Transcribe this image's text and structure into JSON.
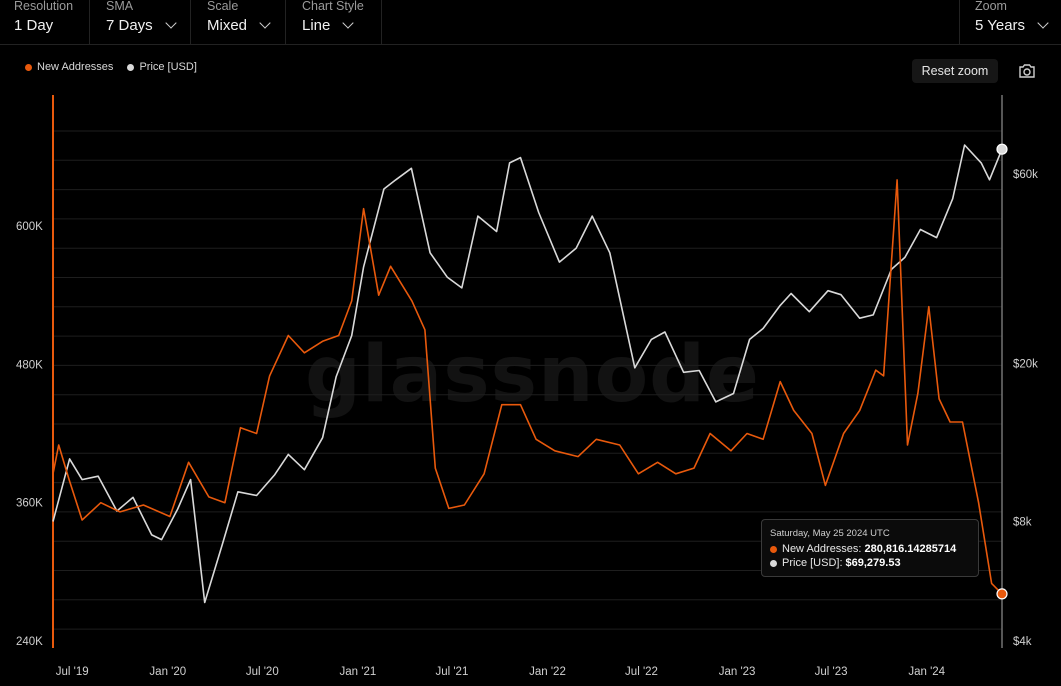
{
  "toolbar": {
    "resolution": {
      "label": "Resolution",
      "value": "1 Day"
    },
    "sma": {
      "label": "SMA",
      "value": "7 Days"
    },
    "scale": {
      "label": "Scale",
      "value": "Mixed"
    },
    "chart_style": {
      "label": "Chart Style",
      "value": "Line"
    },
    "zoom": {
      "label": "Zoom",
      "value": "5 Years"
    }
  },
  "buttons": {
    "reset_zoom": "Reset zoom"
  },
  "watermark": "glassnode",
  "tooltip": {
    "date": "Saturday, May 25 2024 UTC",
    "new_addresses_label": "New Addresses:",
    "new_addresses_value": "280,816.14285714",
    "price_label": "Price [USD]:",
    "price_value": "$69,279.53"
  },
  "colors": {
    "new_addresses": "#e8590c",
    "price": "#d9d9d9",
    "background": "#000000",
    "grid": "#1e1e1e"
  },
  "chart_data": {
    "type": "line",
    "legend_position": "top-left",
    "grid": true,
    "x_range": [
      "2019-05-25",
      "2024-05-25"
    ],
    "x_ticks": [
      "Jul '19",
      "Jan '20",
      "Jul '20",
      "Jan '21",
      "Jul '21",
      "Jan '22",
      "Jul '22",
      "Jan '23",
      "Jul '23",
      "Jan '24"
    ],
    "left_axis": {
      "ticks": [
        "240K",
        "360K",
        "480K",
        "600K"
      ],
      "tick_values": [
        240000,
        360000,
        480000,
        600000
      ],
      "scale": "linear"
    },
    "right_axis": {
      "ticks": [
        "$4k",
        "$8k",
        "$20k",
        "$60k"
      ],
      "tick_values": [
        4000,
        8000,
        20000,
        60000
      ],
      "scale": "log"
    },
    "series": [
      {
        "name": "New Addresses",
        "axis": "left",
        "points": [
          [
            "2019-05-25",
            385000
          ],
          [
            "2019-06-05",
            410000
          ],
          [
            "2019-06-25",
            380000
          ],
          [
            "2019-07-20",
            345000
          ],
          [
            "2019-08-25",
            360000
          ],
          [
            "2019-10-01",
            352000
          ],
          [
            "2019-11-15",
            358000
          ],
          [
            "2020-01-05",
            348000
          ],
          [
            "2020-02-10",
            395000
          ],
          [
            "2020-03-20",
            365000
          ],
          [
            "2020-04-20",
            360000
          ],
          [
            "2020-05-20",
            425000
          ],
          [
            "2020-06-20",
            420000
          ],
          [
            "2020-07-15",
            470000
          ],
          [
            "2020-08-20",
            505000
          ],
          [
            "2020-09-20",
            490000
          ],
          [
            "2020-10-25",
            500000
          ],
          [
            "2020-11-25",
            505000
          ],
          [
            "2020-12-20",
            535000
          ],
          [
            "2021-01-12",
            615000
          ],
          [
            "2021-02-10",
            540000
          ],
          [
            "2021-03-05",
            565000
          ],
          [
            "2021-04-15",
            535000
          ],
          [
            "2021-05-10",
            510000
          ],
          [
            "2021-05-30",
            390000
          ],
          [
            "2021-06-25",
            355000
          ],
          [
            "2021-07-25",
            358000
          ],
          [
            "2021-09-01",
            385000
          ],
          [
            "2021-10-05",
            445000
          ],
          [
            "2021-11-10",
            445000
          ],
          [
            "2021-12-10",
            415000
          ],
          [
            "2022-01-15",
            405000
          ],
          [
            "2022-03-01",
            400000
          ],
          [
            "2022-04-05",
            415000
          ],
          [
            "2022-05-20",
            410000
          ],
          [
            "2022-06-25",
            385000
          ],
          [
            "2022-08-01",
            395000
          ],
          [
            "2022-09-05",
            385000
          ],
          [
            "2022-10-10",
            390000
          ],
          [
            "2022-11-10",
            420000
          ],
          [
            "2022-12-20",
            405000
          ],
          [
            "2023-01-20",
            420000
          ],
          [
            "2023-02-20",
            415000
          ],
          [
            "2023-03-25",
            465000
          ],
          [
            "2023-04-20",
            440000
          ],
          [
            "2023-05-25",
            420000
          ],
          [
            "2023-06-20",
            375000
          ],
          [
            "2023-07-25",
            420000
          ],
          [
            "2023-08-25",
            440000
          ],
          [
            "2023-09-25",
            475000
          ],
          [
            "2023-10-10",
            470000
          ],
          [
            "2023-11-05",
            640000
          ],
          [
            "2023-11-25",
            410000
          ],
          [
            "2023-12-15",
            455000
          ],
          [
            "2024-01-05",
            530000
          ],
          [
            "2024-01-25",
            450000
          ],
          [
            "2024-02-15",
            430000
          ],
          [
            "2024-03-10",
            430000
          ],
          [
            "2024-04-10",
            360000
          ],
          [
            "2024-05-05",
            290000
          ],
          [
            "2024-05-25",
            280816
          ]
        ]
      },
      {
        "name": "Price [USD]",
        "axis": "right",
        "points": [
          [
            "2019-05-25",
            8000
          ],
          [
            "2019-06-26",
            11500
          ],
          [
            "2019-07-20",
            10200
          ],
          [
            "2019-08-20",
            10400
          ],
          [
            "2019-09-25",
            8500
          ],
          [
            "2019-10-26",
            9200
          ],
          [
            "2019-12-01",
            7400
          ],
          [
            "2019-12-20",
            7200
          ],
          [
            "2020-01-20",
            8600
          ],
          [
            "2020-02-14",
            10200
          ],
          [
            "2020-03-12",
            5000
          ],
          [
            "2020-04-15",
            7000
          ],
          [
            "2020-05-15",
            9500
          ],
          [
            "2020-06-20",
            9300
          ],
          [
            "2020-07-25",
            10500
          ],
          [
            "2020-08-20",
            11800
          ],
          [
            "2020-09-20",
            10800
          ],
          [
            "2020-10-25",
            13000
          ],
          [
            "2020-11-20",
            18500
          ],
          [
            "2020-12-20",
            23500
          ],
          [
            "2021-01-12",
            35000
          ],
          [
            "2021-02-20",
            55000
          ],
          [
            "2021-03-15",
            58000
          ],
          [
            "2021-04-14",
            62000
          ],
          [
            "2021-05-20",
            38000
          ],
          [
            "2021-06-22",
            33000
          ],
          [
            "2021-07-20",
            31000
          ],
          [
            "2021-08-20",
            47000
          ],
          [
            "2021-09-25",
            43000
          ],
          [
            "2021-10-20",
            64000
          ],
          [
            "2021-11-10",
            66000
          ],
          [
            "2021-12-15",
            48000
          ],
          [
            "2022-01-24",
            36000
          ],
          [
            "2022-02-25",
            39000
          ],
          [
            "2022-03-28",
            47000
          ],
          [
            "2022-05-01",
            38000
          ],
          [
            "2022-06-18",
            19500
          ],
          [
            "2022-07-20",
            23000
          ],
          [
            "2022-08-15",
            24000
          ],
          [
            "2022-09-20",
            19000
          ],
          [
            "2022-10-20",
            19200
          ],
          [
            "2022-11-21",
            16000
          ],
          [
            "2022-12-25",
            16800
          ],
          [
            "2023-01-25",
            23000
          ],
          [
            "2023-02-20",
            24500
          ],
          [
            "2023-03-25",
            28000
          ],
          [
            "2023-04-15",
            30000
          ],
          [
            "2023-05-20",
            27000
          ],
          [
            "2023-06-25",
            30500
          ],
          [
            "2023-07-20",
            29800
          ],
          [
            "2023-08-25",
            26000
          ],
          [
            "2023-09-20",
            26500
          ],
          [
            "2023-10-25",
            34500
          ],
          [
            "2023-11-20",
            37000
          ],
          [
            "2023-12-20",
            43500
          ],
          [
            "2024-01-20",
            41500
          ],
          [
            "2024-02-20",
            52000
          ],
          [
            "2024-03-14",
            71000
          ],
          [
            "2024-04-15",
            64000
          ],
          [
            "2024-05-01",
            58000
          ],
          [
            "2024-05-25",
            69279.53
          ]
        ]
      }
    ]
  }
}
